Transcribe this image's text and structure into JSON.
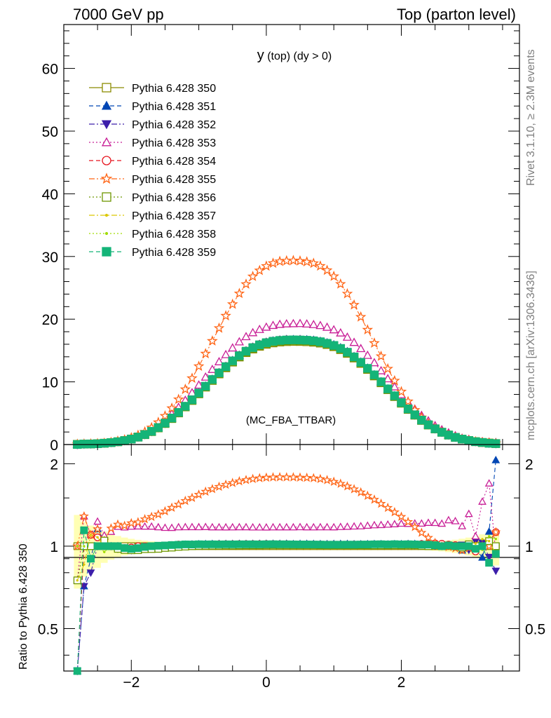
{
  "header": {
    "left": "7000 GeV pp",
    "right": "Top (parton level)"
  },
  "side_labels": {
    "rivet": "Rivet 3.1.10, ≥ 2.3M events",
    "mcplots": "mcplots.cern.ch [arXiv:1306.3436]"
  },
  "main_title_main": "y",
  "main_title_small": " (top) (dy > 0)",
  "watermark": "(MC_FBA_TTBAR)",
  "ratio_ylabel": "Ratio to Pythia 6.428 350",
  "main_yticks": [
    "0",
    "10",
    "20",
    "30",
    "40",
    "50",
    "60"
  ],
  "ratio_yticks_left": [
    "0.5",
    "1",
    "2"
  ],
  "ratio_yticks_right": [
    "0.5",
    "1",
    "2"
  ],
  "xticks": [
    "−2",
    "0",
    "2"
  ],
  "legend": [
    {
      "label": "Pythia 6.428 350",
      "color": "#8b8b00",
      "marker": "open-square",
      "dash": "solid"
    },
    {
      "label": "Pythia 6.428 351",
      "color": "#0046b4",
      "marker": "filled-triangle-up",
      "dash": "dashed"
    },
    {
      "label": "Pythia 6.428 352",
      "color": "#3c1eaa",
      "marker": "filled-triangle-down",
      "dash": "dashdot"
    },
    {
      "label": "Pythia 6.428 353",
      "color": "#c81e96",
      "marker": "open-triangle-up",
      "dash": "dotted"
    },
    {
      "label": "Pythia 6.428 354",
      "color": "#e6141e",
      "marker": "open-circle",
      "dash": "dashed"
    },
    {
      "label": "Pythia 6.428 355",
      "color": "#ff6414",
      "marker": "open-star",
      "dash": "dashdot"
    },
    {
      "label": "Pythia 6.428 356",
      "color": "#6e9600",
      "marker": "open-square",
      "dash": "dotted"
    },
    {
      "label": "Pythia 6.428 357",
      "color": "#dcc800",
      "marker": "small-dot",
      "dash": "dashdot"
    },
    {
      "label": "Pythia 6.428 358",
      "color": "#a0dc00",
      "marker": "small-dot",
      "dash": "dotted"
    },
    {
      "label": "Pythia 6.428 359",
      "color": "#14b478",
      "marker": "filled-square",
      "dash": "dashed"
    }
  ],
  "chart_data": {
    "type": "line",
    "x": [
      -2.8,
      -2.7,
      -2.6,
      -2.5,
      -2.4,
      -2.3,
      -2.2,
      -2.1,
      -2.0,
      -1.9,
      -1.8,
      -1.7,
      -1.6,
      -1.5,
      -1.4,
      -1.3,
      -1.2,
      -1.1,
      -1.0,
      -0.9,
      -0.8,
      -0.7,
      -0.6,
      -0.5,
      -0.4,
      -0.3,
      -0.2,
      -0.1,
      0.0,
      0.1,
      0.2,
      0.3,
      0.4,
      0.5,
      0.6,
      0.7,
      0.8,
      0.9,
      1.0,
      1.1,
      1.2,
      1.3,
      1.4,
      1.5,
      1.6,
      1.7,
      1.8,
      1.9,
      2.0,
      2.1,
      2.2,
      2.3,
      2.4,
      2.5,
      2.6,
      2.7,
      2.8,
      2.9,
      3.0,
      3.1,
      3.2,
      3.3,
      3.4
    ],
    "xlim": [
      -3.0,
      3.75
    ],
    "ylim": [
      0,
      67
    ],
    "ratio_ylim": [
      0.35,
      2.35
    ],
    "series": [
      {
        "name": "Pythia 6.428 350",
        "values": [
          0.04,
          0.07,
          0.1,
          0.13,
          0.21,
          0.31,
          0.45,
          0.64,
          0.89,
          1.21,
          1.61,
          2.11,
          2.71,
          3.4,
          4.19,
          5.07,
          6.02,
          7.04,
          8.09,
          9.16,
          10.22,
          11.26,
          12.24,
          13.15,
          13.96,
          14.66,
          15.23,
          15.67,
          15.99,
          16.21,
          16.35,
          16.42,
          16.45,
          16.44,
          16.4,
          16.32,
          16.18,
          15.95,
          15.61,
          15.14,
          14.54,
          13.8,
          12.94,
          11.98,
          10.94,
          9.85,
          8.75,
          7.65,
          6.59,
          5.6,
          4.68,
          3.85,
          3.12,
          2.49,
          1.96,
          1.51,
          1.15,
          0.87,
          0.64,
          0.46,
          0.33,
          0.23,
          0.16
        ]
      },
      {
        "name": "Pythia 6.428 351",
        "values": [
          0.0,
          0.05,
          0.09,
          0.15,
          0.22,
          0.31,
          0.45,
          0.62,
          0.86,
          1.18,
          1.58,
          2.08,
          2.7,
          3.41,
          4.21,
          5.12,
          6.1,
          7.15,
          8.23,
          9.33,
          10.42,
          11.48,
          12.48,
          13.41,
          14.24,
          14.95,
          15.54,
          15.99,
          16.33,
          16.55,
          16.68,
          16.77,
          16.76,
          16.77,
          16.73,
          16.64,
          16.48,
          16.24,
          15.92,
          15.44,
          14.82,
          14.04,
          13.16,
          12.2,
          11.15,
          10.03,
          8.89,
          7.79,
          6.71,
          5.71,
          4.77,
          3.92,
          3.17,
          2.52,
          1.98,
          1.52,
          1.15,
          0.84,
          0.63,
          0.45,
          0.3,
          0.26,
          0.33
        ]
      },
      {
        "name": "Pythia 6.428 352",
        "values": [
          0.0,
          0.05,
          0.08,
          0.13,
          0.22,
          0.31,
          0.44,
          0.63,
          0.86,
          1.18,
          1.58,
          2.07,
          2.67,
          3.37,
          4.19,
          5.09,
          6.06,
          7.09,
          8.18,
          9.26,
          10.33,
          11.37,
          12.38,
          13.3,
          14.12,
          14.83,
          15.42,
          15.87,
          16.22,
          16.45,
          16.58,
          16.64,
          16.68,
          16.67,
          16.64,
          16.55,
          16.4,
          16.15,
          15.81,
          15.33,
          14.71,
          13.97,
          13.09,
          12.12,
          11.07,
          9.96,
          8.86,
          7.74,
          6.67,
          5.65,
          4.72,
          3.89,
          3.15,
          2.5,
          1.96,
          1.52,
          1.16,
          0.88,
          0.62,
          0.48,
          0.34,
          0.21,
          0.13
        ]
      },
      {
        "name": "Pythia 6.428 353",
        "values": [
          0.03,
          0.09,
          0.11,
          0.16,
          0.23,
          0.35,
          0.53,
          0.75,
          1.05,
          1.43,
          1.9,
          2.49,
          3.18,
          3.97,
          4.89,
          5.95,
          7.07,
          8.27,
          9.5,
          10.77,
          11.99,
          13.21,
          14.35,
          15.42,
          16.39,
          17.21,
          17.85,
          18.36,
          18.73,
          19.01,
          19.18,
          19.26,
          19.29,
          19.31,
          19.24,
          19.14,
          18.99,
          18.72,
          18.31,
          17.81,
          17.13,
          16.3,
          15.31,
          14.24,
          13.06,
          11.78,
          10.5,
          9.21,
          7.97,
          6.76,
          5.67,
          4.66,
          3.8,
          3.03,
          2.37,
          1.88,
          1.42,
          1.03,
          0.84,
          0.5,
          0.48,
          0.39,
          0.15
        ]
      },
      {
        "name": "Pythia 6.428 354",
        "values": [
          0.0,
          0.07,
          0.11,
          0.14,
          0.21,
          0.31,
          0.45,
          0.63,
          0.88,
          1.21,
          1.61,
          2.11,
          2.71,
          3.42,
          4.23,
          5.14,
          6.11,
          7.14,
          8.21,
          9.3,
          10.38,
          11.45,
          12.45,
          13.37,
          14.21,
          14.92,
          15.5,
          15.95,
          16.28,
          16.5,
          16.63,
          16.7,
          16.71,
          16.7,
          16.65,
          16.56,
          16.4,
          16.16,
          15.82,
          15.34,
          14.73,
          13.99,
          13.12,
          12.14,
          11.1,
          10.0,
          8.88,
          7.77,
          6.69,
          5.69,
          4.75,
          3.92,
          3.18,
          2.55,
          2.0,
          1.53,
          1.16,
          0.87,
          0.65,
          0.44,
          0.33,
          0.24,
          0.18
        ]
      },
      {
        "name": "Pythia 6.428 355",
        "values": [
          0.04,
          0.09,
          0.11,
          0.15,
          0.22,
          0.36,
          0.54,
          0.76,
          1.08,
          1.48,
          2.02,
          2.7,
          3.54,
          4.56,
          5.79,
          7.2,
          8.81,
          10.57,
          12.48,
          14.49,
          16.52,
          18.56,
          20.53,
          22.38,
          24.09,
          25.58,
          26.81,
          27.76,
          28.46,
          28.92,
          29.21,
          29.31,
          29.35,
          29.28,
          29.15,
          28.91,
          28.47,
          27.79,
          26.83,
          25.6,
          24.05,
          22.27,
          20.35,
          18.3,
          16.18,
          14.08,
          12.08,
          10.18,
          8.44,
          6.87,
          5.5,
          4.31,
          3.35,
          2.56,
          1.96,
          1.5,
          1.13,
          0.84,
          0.63,
          0.46,
          0.33,
          0.23,
          0.18
        ]
      },
      {
        "name": "Pythia 6.428 356",
        "values": [
          0.03,
          0.07,
          0.1,
          0.13,
          0.22,
          0.31,
          0.44,
          0.62,
          0.86,
          1.17,
          1.57,
          2.06,
          2.65,
          3.35,
          4.14,
          5.04,
          6.0,
          7.04,
          8.11,
          9.19,
          10.26,
          11.31,
          12.31,
          13.22,
          14.05,
          14.77,
          15.35,
          15.79,
          16.13,
          16.36,
          16.49,
          16.56,
          16.59,
          16.58,
          16.54,
          16.46,
          16.31,
          16.07,
          15.73,
          15.26,
          14.65,
          13.9,
          13.04,
          12.06,
          11.01,
          9.92,
          8.81,
          7.71,
          6.64,
          5.65,
          4.72,
          3.86,
          3.12,
          2.51,
          1.96,
          1.52,
          1.15,
          0.86,
          0.65,
          0.46,
          0.33,
          0.24,
          0.16
        ]
      },
      {
        "name": "Pythia 6.428 357",
        "values": [
          0.03,
          0.06,
          0.11,
          0.14,
          0.21,
          0.31,
          0.45,
          0.64,
          0.88,
          1.2,
          1.6,
          2.1,
          2.72,
          3.41,
          4.22,
          5.13,
          6.1,
          7.13,
          8.21,
          9.3,
          10.38,
          11.44,
          12.44,
          13.36,
          14.2,
          14.91,
          15.5,
          15.94,
          16.28,
          16.5,
          16.63,
          16.71,
          16.73,
          16.7,
          16.66,
          16.57,
          16.41,
          16.16,
          15.82,
          15.34,
          14.73,
          13.97,
          13.1,
          12.14,
          11.09,
          9.99,
          8.88,
          7.77,
          6.7,
          5.69,
          4.75,
          3.91,
          3.18,
          2.53,
          1.98,
          1.53,
          1.16,
          0.86,
          0.65,
          0.47,
          0.35,
          0.24,
          0.15
        ]
      },
      {
        "name": "Pythia 6.428 358",
        "values": [
          0.04,
          0.07,
          0.09,
          0.13,
          0.2,
          0.31,
          0.44,
          0.63,
          0.87,
          1.19,
          1.59,
          2.09,
          2.69,
          3.39,
          4.2,
          5.09,
          6.07,
          7.1,
          8.16,
          9.25,
          10.33,
          11.38,
          12.38,
          13.3,
          14.13,
          14.84,
          15.42,
          15.87,
          16.22,
          16.44,
          16.57,
          16.64,
          16.66,
          16.66,
          16.61,
          16.52,
          16.36,
          16.13,
          15.79,
          15.32,
          14.71,
          13.96,
          13.08,
          12.11,
          11.08,
          9.97,
          8.86,
          7.76,
          6.69,
          5.67,
          4.75,
          3.9,
          3.16,
          2.52,
          1.98,
          1.53,
          1.16,
          0.86,
          0.63,
          0.45,
          0.32,
          0.25,
          0.17
        ]
      },
      {
        "name": "Pythia 6.428 359",
        "values": [
          0.01,
          0.08,
          0.09,
          0.13,
          0.21,
          0.31,
          0.45,
          0.63,
          0.87,
          1.19,
          1.6,
          2.11,
          2.72,
          3.42,
          4.23,
          5.13,
          6.11,
          7.14,
          8.22,
          9.3,
          10.38,
          11.43,
          12.43,
          13.35,
          14.18,
          14.89,
          15.47,
          15.91,
          16.25,
          16.48,
          16.61,
          16.68,
          16.7,
          16.68,
          16.64,
          16.55,
          16.4,
          16.15,
          15.81,
          15.33,
          14.73,
          13.98,
          13.12,
          12.15,
          11.11,
          10.01,
          8.88,
          7.78,
          6.69,
          5.69,
          4.75,
          3.9,
          3.16,
          2.51,
          1.96,
          1.52,
          1.15,
          0.87,
          0.64,
          0.45,
          0.33,
          0.2,
          0.15
        ]
      }
    ]
  }
}
